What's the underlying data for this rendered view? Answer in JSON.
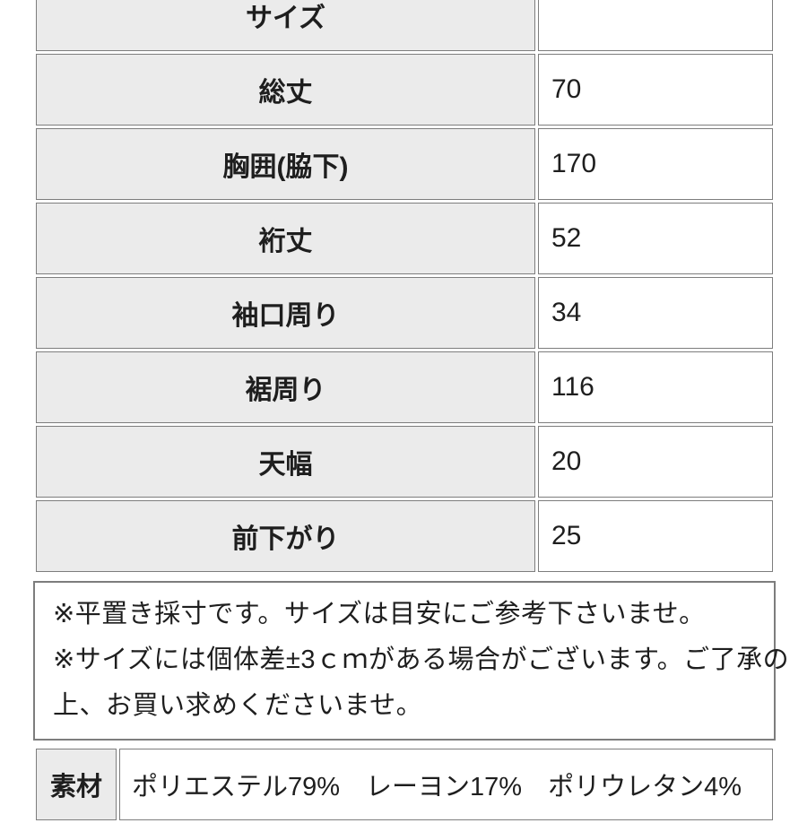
{
  "colors": {
    "page_background": "#ffffff",
    "label_cell_background": "#ebebeb",
    "border": "#7d7d7d",
    "text": "#1e1e1e"
  },
  "size_table": {
    "rows": [
      {
        "label": "サイズ",
        "value": ""
      },
      {
        "label": "総丈",
        "value": "70"
      },
      {
        "label": "胸囲(脇下)",
        "value": "170"
      },
      {
        "label": "裄丈",
        "value": "52"
      },
      {
        "label": "袖口周り",
        "value": "34"
      },
      {
        "label": "裾周り",
        "value": "116"
      },
      {
        "label": "天幅",
        "value": "20"
      },
      {
        "label": "前下がり",
        "value": "25"
      }
    ]
  },
  "notes": {
    "lines": [
      "※平置き採寸です。サイズは目安にご参考下さいませ。",
      "※サイズには個体差±3ｃｍがある場合がございます。ご了承の",
      "上、お買い求めくださいませ。"
    ]
  },
  "material": {
    "label": "素材",
    "value": "ポリエステル79%　レーヨン17%　ポリウレタン4%"
  }
}
